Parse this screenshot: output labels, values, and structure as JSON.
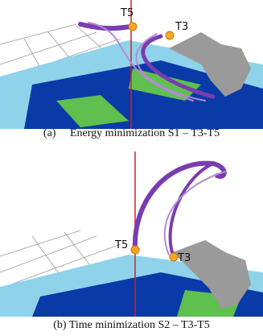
{
  "panels": [
    {
      "labels": [
        "T5",
        "T3"
      ],
      "caption": "(a)     Energy minimization S1 – T3-T5"
    },
    {
      "labels": [
        "T5",
        "T3"
      ],
      "caption": "(b) Time minimization S2 – T3-T5"
    }
  ]
}
